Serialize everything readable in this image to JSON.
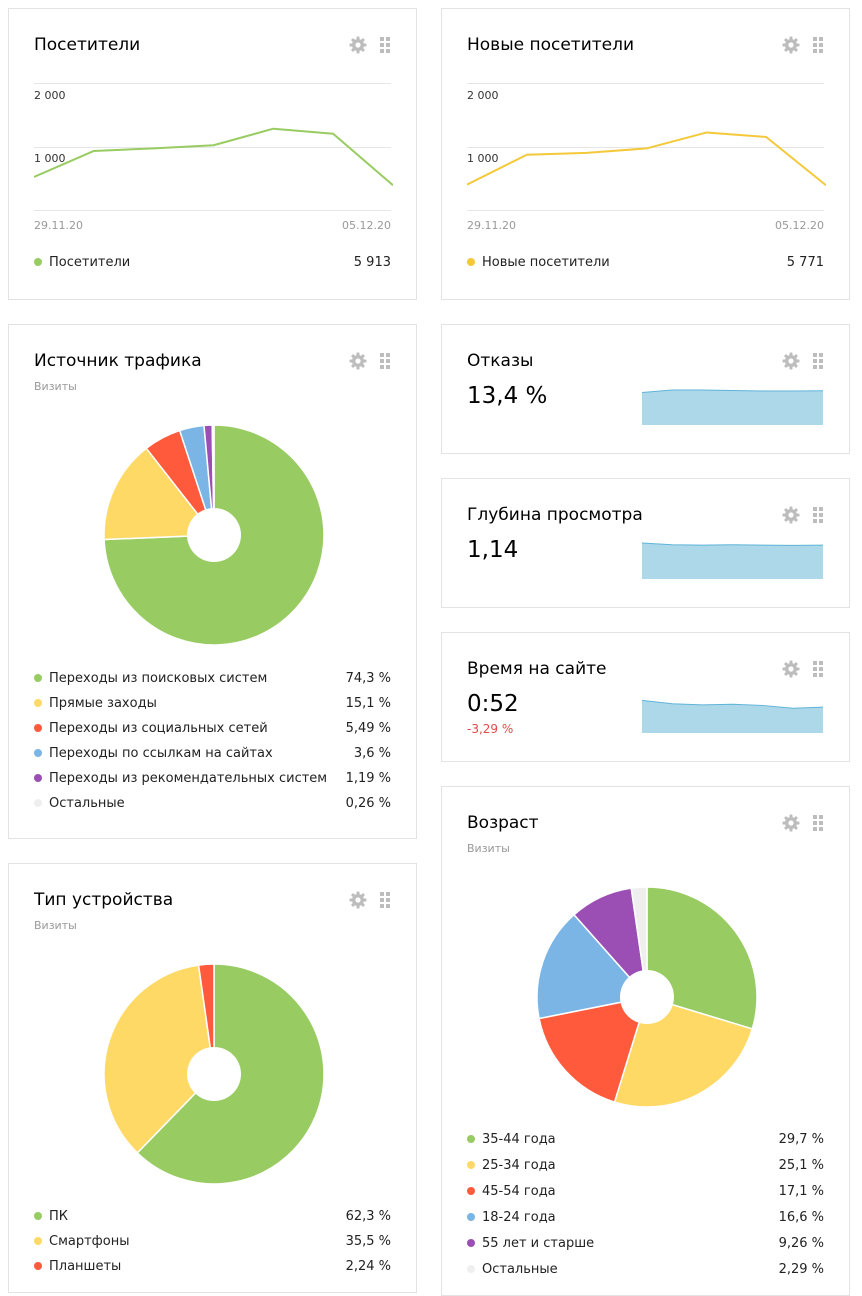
{
  "colors": {
    "green": "#98cc62",
    "yellow": "#ffd966",
    "yellow_line": "#f3c93a",
    "red": "#ff5a3c",
    "blue": "#7ab5e5",
    "purple": "#9b4fb5",
    "light": "#efefef",
    "spark_fill": "#add8ea",
    "spark_line": "#5fb4d8"
  },
  "visitors": {
    "title": "Посетители",
    "y1": "2 000",
    "y2": "1 000",
    "x_start": "29.11.20",
    "x_end": "05.12.20",
    "legend_label": "Посетители",
    "legend_value": "5 913"
  },
  "new_visitors": {
    "title": "Новые посетители",
    "y1": "2 000",
    "y2": "1 000",
    "x_start": "29.11.20",
    "x_end": "05.12.20",
    "legend_label": "Новые посетители",
    "legend_value": "5 771"
  },
  "traffic": {
    "title": "Источник трафика",
    "subtitle": "Визиты",
    "items": [
      {
        "label": "Переходы из поисковых систем",
        "value": "74,3 %"
      },
      {
        "label": "Прямые заходы",
        "value": "15,1 %"
      },
      {
        "label": "Переходы из социальных сетей",
        "value": "5,49 %"
      },
      {
        "label": "Переходы по ссылкам на сайтах",
        "value": "3,6 %"
      },
      {
        "label": "Переходы из рекомендательных систем",
        "value": "1,19 %"
      },
      {
        "label": "Остальные",
        "value": "0,26 %"
      }
    ]
  },
  "bounce": {
    "title": "Отказы",
    "value": "13,4 %"
  },
  "depth": {
    "title": "Глубина просмотра",
    "value": "1,14"
  },
  "time": {
    "title": "Время на сайте",
    "value": "0:52",
    "delta": "-3,29 %"
  },
  "device": {
    "title": "Тип устройства",
    "subtitle": "Визиты",
    "items": [
      {
        "label": "ПК",
        "value": "62,3 %"
      },
      {
        "label": "Смартфоны",
        "value": "35,5 %"
      },
      {
        "label": "Планшеты",
        "value": "2,24 %"
      }
    ]
  },
  "age": {
    "title": "Возраст",
    "subtitle": "Визиты",
    "items": [
      {
        "label": "35-44 года",
        "value": "29,7 %"
      },
      {
        "label": "25-34 года",
        "value": "25,1 %"
      },
      {
        "label": "45-54 года",
        "value": "17,1 %"
      },
      {
        "label": "18-24 года",
        "value": "16,6 %"
      },
      {
        "label": "55 лет и старше",
        "value": "9,26 %"
      },
      {
        "label": "Остальные",
        "value": "2,29 %"
      }
    ]
  },
  "chart_data": [
    {
      "type": "line",
      "series": [
        {
          "name": "Посетители",
          "values": [
            520,
            930,
            970,
            1020,
            1280,
            1200,
            390
          ]
        }
      ],
      "ylim": [
        0,
        2000
      ],
      "x_labels": [
        "29.11.20",
        "05.12.20"
      ]
    },
    {
      "type": "line",
      "series": [
        {
          "name": "Новые посетители",
          "values": [
            400,
            870,
            900,
            970,
            1220,
            1150,
            390
          ]
        }
      ],
      "ylim": [
        0,
        2000
      ],
      "x_labels": [
        "29.11.20",
        "05.12.20"
      ]
    },
    {
      "type": "pie",
      "categories": [
        "Переходы из поисковых систем",
        "Прямые заходы",
        "Переходы из социальных сетей",
        "Переходы по ссылкам на сайтах",
        "Переходы из рекомендательных систем",
        "Остальные"
      ],
      "values": [
        74.3,
        15.1,
        5.49,
        3.6,
        1.19,
        0.26
      ]
    },
    {
      "type": "area",
      "values": [
        13.0,
        14.0,
        14.0,
        13.8,
        13.6,
        13.6,
        13.7
      ],
      "ylim": [
        0,
        18
      ]
    },
    {
      "type": "area",
      "values": [
        1.2,
        1.14,
        1.13,
        1.14,
        1.13,
        1.12,
        1.13
      ],
      "ylim": [
        0,
        1.5
      ]
    },
    {
      "type": "area",
      "values": [
        58,
        52,
        50,
        51,
        49,
        44,
        46
      ],
      "ylim": [
        0,
        80
      ]
    },
    {
      "type": "pie",
      "categories": [
        "ПК",
        "Смартфоны",
        "Планшеты"
      ],
      "values": [
        62.3,
        35.5,
        2.24
      ]
    },
    {
      "type": "pie",
      "categories": [
        "35-44 года",
        "25-34 года",
        "45-54 года",
        "18-24 года",
        "55 лет и старше",
        "Остальные"
      ],
      "values": [
        29.7,
        25.1,
        17.1,
        16.6,
        9.26,
        2.29
      ]
    }
  ]
}
